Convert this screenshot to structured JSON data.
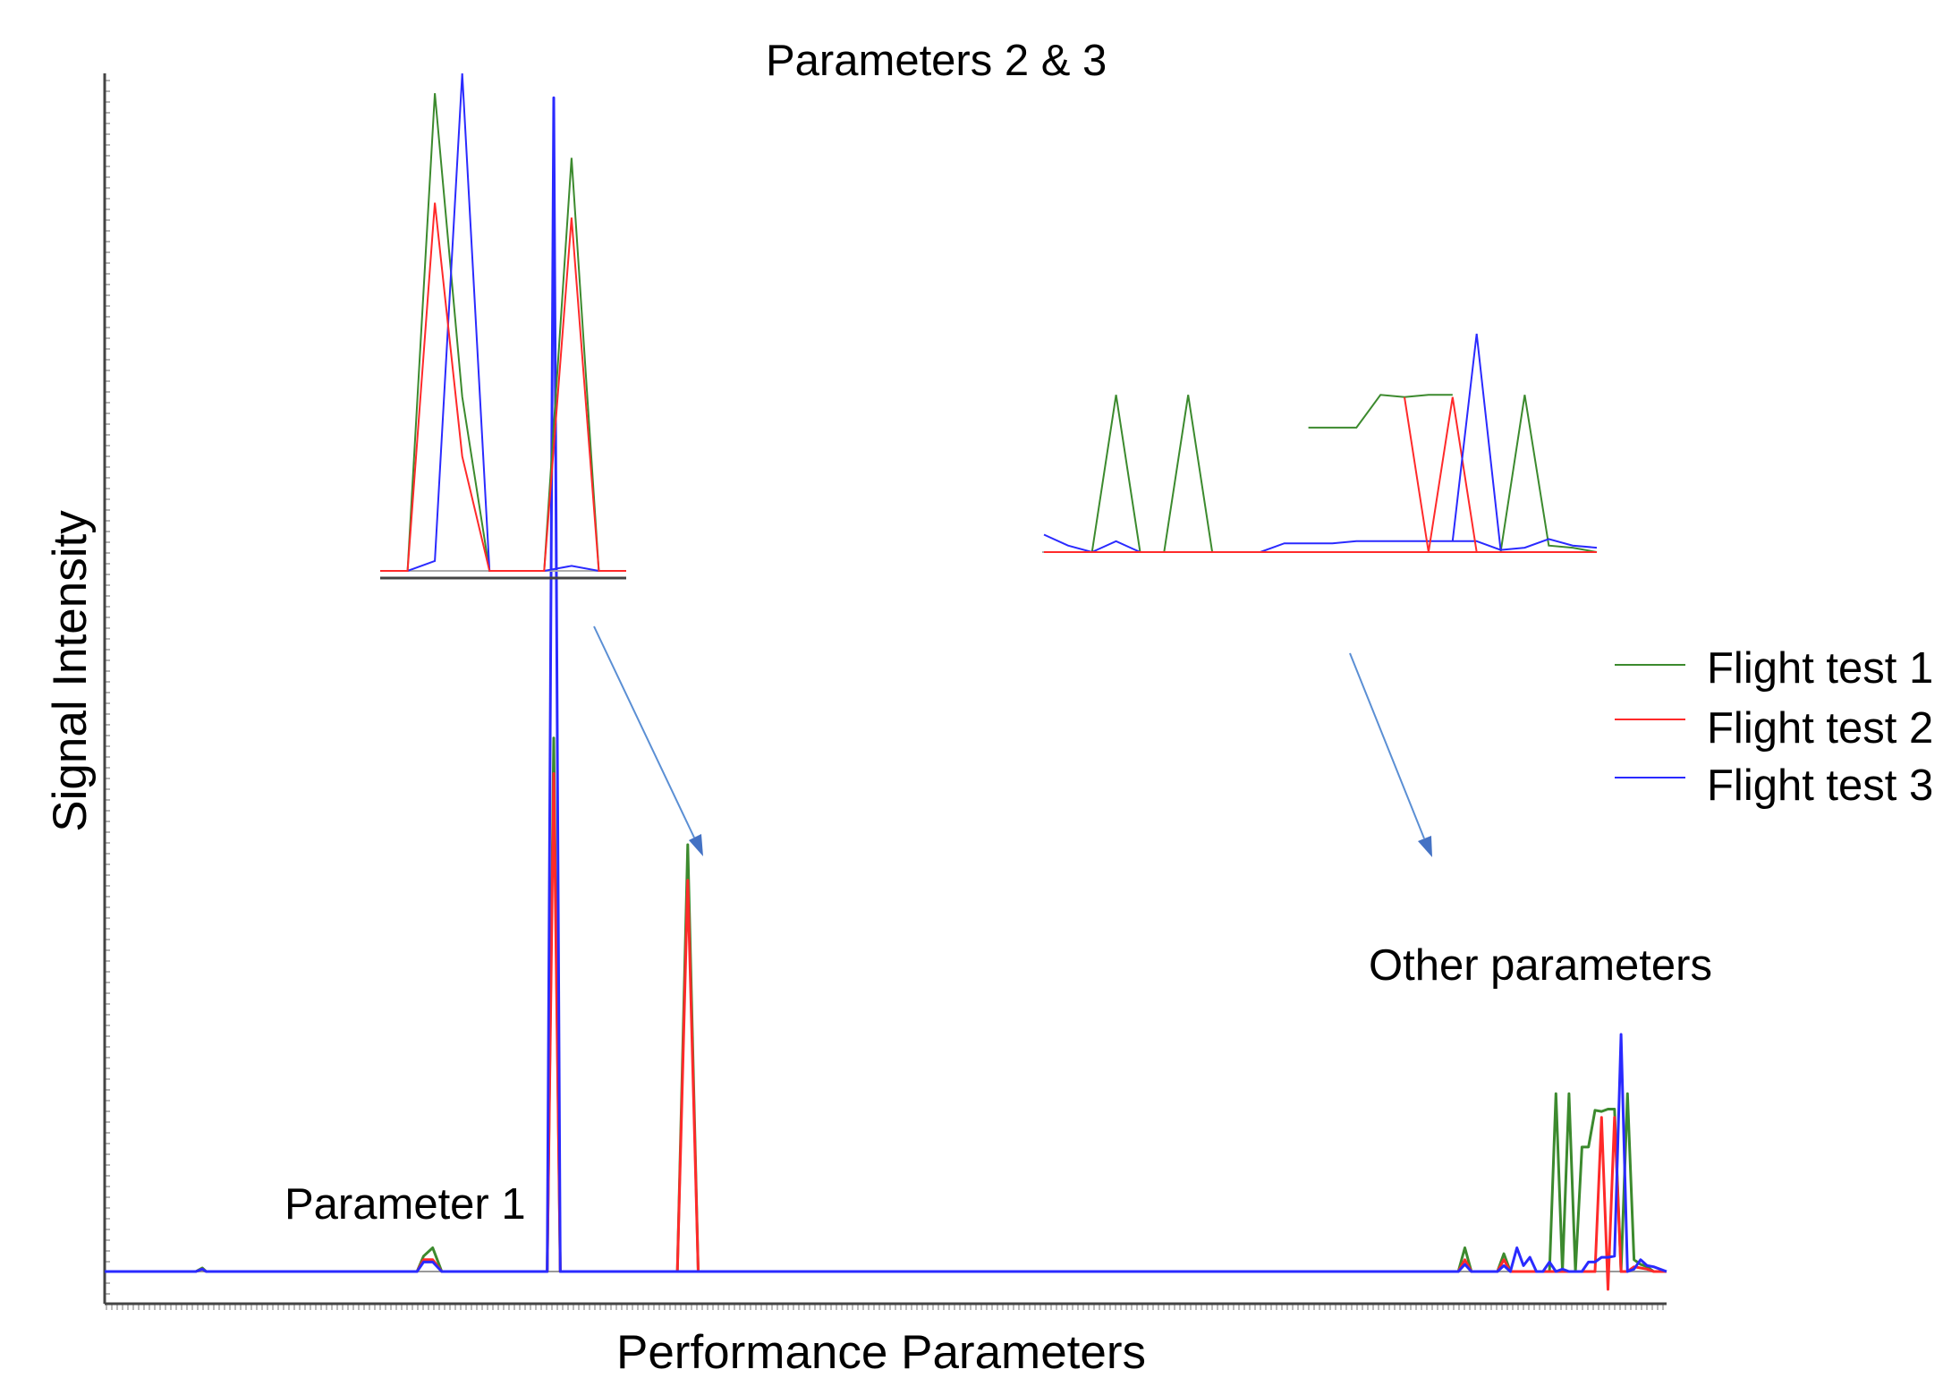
{
  "chart_data": {
    "type": "line",
    "title": "",
    "xlabel": "Performance Parameters",
    "ylabel": "Signal Intensity",
    "grid": false,
    "legend_position": "right",
    "colors": {
      "Flight test 1": "#3c8a2e",
      "Flight test 2": "#ff2a2a",
      "Flight test 3": "#2a2aff"
    },
    "annotations": [
      "Parameters 2 & 3",
      "Parameter 1",
      "Other parameters"
    ],
    "legend": [
      "Flight test 1",
      "Flight test 2",
      "Flight test 3"
    ],
    "ylim": [
      -0.02,
      1
    ],
    "x": [
      0,
      70,
      75,
      78,
      120,
      200,
      240,
      245,
      252,
      259,
      300,
      310,
      340,
      345,
      350,
      430,
      440,
      448,
      456,
      462,
      470,
      480,
      500,
      560,
      580,
      600,
      620,
      640,
      660,
      680,
      700,
      720,
      740,
      760,
      780,
      800,
      820,
      840,
      860,
      880,
      900,
      920,
      940,
      960,
      980,
      1000,
      1010,
      1015,
      1020,
      1025,
      1030,
      1035,
      1040,
      1045,
      1050,
      1055,
      1060,
      1065,
      1070,
      1075,
      1080,
      1085,
      1090,
      1095,
      1100,
      1105,
      1110,
      1115,
      1120,
      1125,
      1130,
      1135,
      1140,
      1145,
      1150,
      1155,
      1160,
      1165,
      1170,
      1175,
      1180,
      1185,
      1190,
      1200
    ],
    "series": [
      {
        "name": "Flight test 1",
        "values": [
          0,
          0,
          0.003,
          0,
          0,
          0,
          0,
          0.013,
          0.02,
          0,
          0,
          0,
          0,
          0.45,
          0,
          0,
          0,
          0.36,
          0,
          0,
          0,
          0,
          0,
          0,
          0,
          0,
          0,
          0,
          0,
          0,
          0,
          0,
          0,
          0,
          0,
          0,
          0,
          0,
          0,
          0,
          0,
          0,
          0,
          0,
          0,
          0,
          0,
          0,
          0,
          0,
          0,
          0,
          0,
          0.02,
          0,
          0,
          0,
          0,
          0,
          0.015,
          0,
          0,
          0,
          0,
          0,
          0,
          0,
          0.15,
          0,
          0.15,
          0,
          0.105,
          0.105,
          0.136,
          0.135,
          0.137,
          0.137,
          0.0,
          0.15,
          0.01,
          0.006,
          0.004,
          0.0,
          0
        ]
      },
      {
        "name": "Flight test 2",
        "values": [
          0,
          0,
          0.002,
          0,
          0,
          0,
          0,
          0.01,
          0.01,
          0,
          0,
          0,
          0,
          0.42,
          0,
          0,
          0,
          0.33,
          0,
          0,
          0,
          0,
          0,
          0,
          0,
          0,
          0,
          0,
          0,
          0,
          0,
          0,
          0,
          0,
          0,
          0,
          0,
          0,
          0,
          0,
          0,
          0,
          0,
          0,
          0,
          0,
          0,
          0,
          0,
          0,
          0,
          0,
          0,
          0.01,
          0,
          0,
          0,
          0,
          0,
          0.01,
          0,
          0,
          0,
          0,
          0,
          0,
          0,
          0,
          0,
          0,
          0,
          0,
          0,
          0,
          0.13,
          -0.015,
          0.13,
          0,
          0.0,
          0.004,
          0.003,
          0.002,
          0.0,
          0
        ]
      },
      {
        "name": "Flight test 3",
        "values": [
          0,
          0,
          0.002,
          0,
          0,
          0,
          0,
          0.008,
          0.008,
          0,
          0,
          0,
          0,
          0.99,
          0,
          0,
          0,
          0.0,
          0,
          0,
          0,
          0,
          0,
          0,
          0,
          0,
          0,
          0,
          0,
          0,
          0,
          0,
          0,
          0,
          0,
          0,
          0,
          0,
          0,
          0,
          0,
          0,
          0,
          0,
          0,
          0,
          0,
          0,
          0,
          0,
          0,
          0,
          0,
          0.006,
          0,
          0,
          0,
          0,
          0,
          0.005,
          0,
          0.02,
          0.005,
          0.012,
          0.0,
          0.0,
          0.008,
          0.0,
          0.002,
          0.0,
          0.0,
          0.0,
          0.008,
          0.008,
          0.012,
          0.012,
          0.013,
          0.2,
          0.0,
          0.002,
          0.01,
          0.005,
          0.004,
          0
        ]
      }
    ],
    "insets": [
      {
        "ylim": [
          0,
          1
        ],
        "x": [
          0,
          1,
          2,
          3,
          4,
          5,
          6,
          7,
          8,
          9
        ],
        "series": [
          {
            "name": "Flight test 1",
            "values": [
              0,
              0,
              0.96,
              0.35,
              0,
              0,
              0,
              0.83,
              0,
              0
            ]
          },
          {
            "name": "Flight test 2",
            "values": [
              0,
              0,
              0.74,
              0.23,
              0,
              0,
              0,
              0.71,
              0,
              0
            ]
          },
          {
            "name": "Flight test 3",
            "values": [
              0,
              0,
              0.02,
              1.0,
              0,
              0,
              0,
              0.01,
              0,
              0
            ]
          }
        ]
      },
      {
        "ylim": [
          0,
          1
        ],
        "x": [
          0,
          1,
          2,
          3,
          4,
          5,
          6,
          7,
          8,
          9,
          10,
          11,
          12,
          13,
          14,
          15,
          16,
          17,
          18,
          19,
          20,
          21,
          22,
          23
        ],
        "series": [
          {
            "name": "Flight test 1",
            "values": [
              0,
              0,
              0,
              0.72,
              0,
              0,
              0.72,
              0,
              0,
              0,
              0,
              0,
              0,
              0,
              0,
              0,
              0,
              0,
              0,
              0,
              0.72,
              0.03,
              0.02,
              0
            ]
          },
          {
            "name": "Flight test 2",
            "values": [
              0,
              0,
              0,
              0,
              0,
              0,
              0,
              0,
              0,
              0,
              0,
              0,
              0,
              0,
              0,
              0,
              0,
              0,
              0,
              0,
              0,
              0,
              0,
              0
            ]
          },
          {
            "name": "Flight test 3",
            "values": [
              0.08,
              0.03,
              0,
              0.05,
              0,
              0,
              0,
              0,
              0,
              0,
              0.04,
              0.04,
              0.04,
              0.05,
              0.05,
              0.05,
              0.05,
              0.05,
              0.05,
              0.01,
              0.02,
              0.06,
              0.03,
              0.02
            ]
          }
        ],
        "overlay": [
          {
            "name": "Flight test 1",
            "x": [
              11,
              12,
              13,
              14,
              15,
              16,
              17
            ],
            "values": [
              0.57,
              0.57,
              0.57,
              0.72,
              0.71,
              0.72,
              0.72
            ]
          },
          {
            "name": "Flight test 2",
            "x": [
              15,
              16,
              17,
              18
            ],
            "values": [
              0.71,
              0.0,
              0.71,
              0.0
            ]
          },
          {
            "name": "Flight test 3",
            "x": [
              17,
              18,
              19
            ],
            "values": [
              0.05,
              1.0,
              0.01
            ]
          }
        ]
      }
    ]
  }
}
